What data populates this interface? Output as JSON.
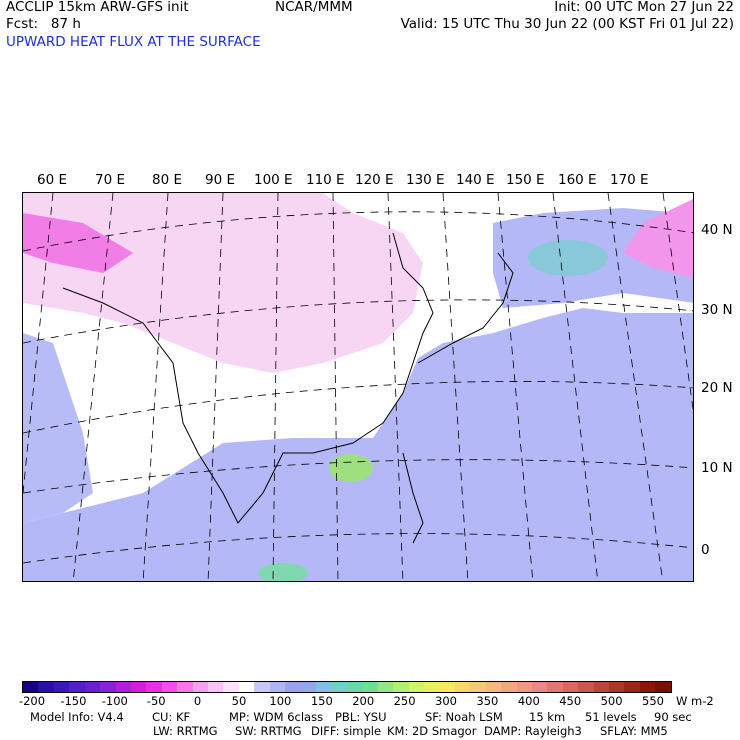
{
  "header": {
    "model_line": "ACCLIP 15km ARW-GFS init",
    "center_label": "NCAR/MMM",
    "init_line": "Init: 00 UTC Mon 27 Jun 22",
    "fcst_line": "Fcst:   87 h",
    "valid_line": "Valid: 15 UTC Thu 30 Jun 22 (00 KST Fri 01 Jul 22)",
    "field_title": "UPWARD HEAT FLUX AT THE SURFACE"
  },
  "map": {
    "longitude_labels": [
      "60 E",
      "70 E",
      "80 E",
      "90 E",
      "100 E",
      "110 E",
      "120 E",
      "130 E",
      "140 E",
      "150 E",
      "160 E",
      "170 E"
    ],
    "latitude_labels": [
      "40 N",
      "30 N",
      "20 N",
      "10 N",
      "0"
    ]
  },
  "colorbar": {
    "colors": [
      "#1a0080",
      "#2a10a0",
      "#3a18b8",
      "#5020c8",
      "#6a20d0",
      "#8a20d8",
      "#b020d8",
      "#d020d8",
      "#e830e0",
      "#f050e8",
      "#f478ec",
      "#f7a0f0",
      "#f9c4f4",
      "#fbe0f8",
      "#ffffff",
      "#c8c8f8",
      "#b0b4f4",
      "#9ca0f0",
      "#8fa8ee",
      "#7fc0e8",
      "#70d0c8",
      "#68d8a8",
      "#70e090",
      "#90e880",
      "#b0f070",
      "#d0f468",
      "#e8f060",
      "#f8e860",
      "#f8d868",
      "#f8c878",
      "#f8b878",
      "#f4a878",
      "#f09880",
      "#e88888",
      "#e07870",
      "#d86860",
      "#c85850",
      "#b84838",
      "#a83820",
      "#982810",
      "#8a1808",
      "#7a1000"
    ],
    "tick_labels": [
      "-200",
      "-150",
      "-100",
      "-50",
      "0",
      "50",
      "100",
      "150",
      "200",
      "250",
      "300",
      "350",
      "400",
      "450",
      "500",
      "550"
    ],
    "units": "W m-2"
  },
  "footer": {
    "line1": [
      "Model Info: V4.4",
      "CU: KF",
      "MP: WDM 6class",
      "PBL: YSU",
      "SF: Noah LSM",
      "15 km",
      "51 levels",
      "90 sec"
    ],
    "line2": [
      "LW: RRTMG",
      "SW: RRTMG",
      "DIFF: simple",
      "KM: 2D Smagor",
      "DAMP: Rayleigh3",
      "SFLAY: MM5"
    ]
  }
}
